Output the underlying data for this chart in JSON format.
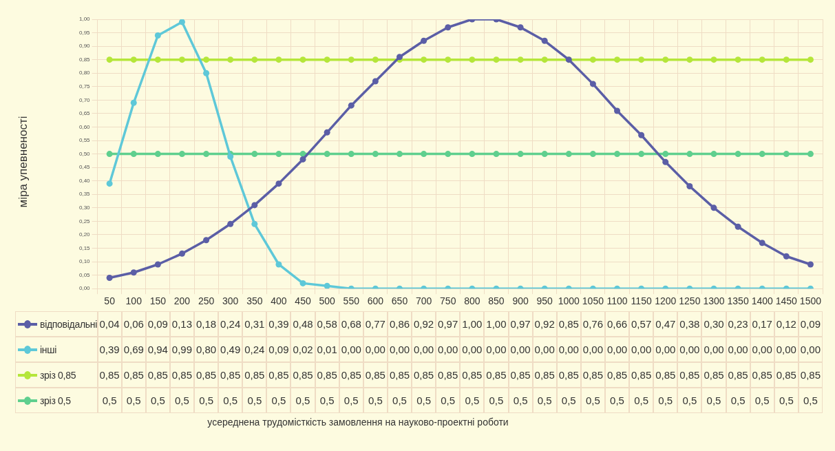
{
  "chart_data": {
    "type": "line",
    "annotations": [
      "усереднена трудомісткість замовлення на науково-проектні роботи"
    ],
    "ylabel": "міра упевненості",
    "categories": [
      "50",
      "100",
      "150",
      "200",
      "250",
      "300",
      "350",
      "400",
      "450",
      "500",
      "550",
      "600",
      "650",
      "700",
      "750",
      "800",
      "850",
      "900",
      "950",
      "1000",
      "1050",
      "1100",
      "1150",
      "1200",
      "1250",
      "1300",
      "1350",
      "1400",
      "1450",
      "1500"
    ],
    "ylim": [
      0,
      1
    ],
    "yticks": [
      {
        "value": 0,
        "label": "0,00"
      },
      {
        "value": 0.05,
        "label": "0,05"
      },
      {
        "value": 0.1,
        "label": "0,10"
      },
      {
        "value": 0.15,
        "label": "0,15"
      },
      {
        "value": 0.2,
        "label": "0,20"
      },
      {
        "value": 0.25,
        "label": "0,25"
      },
      {
        "value": 0.3,
        "label": "0,30"
      },
      {
        "value": 0.35,
        "label": "0,35"
      },
      {
        "value": 0.4,
        "label": "0,40"
      },
      {
        "value": 0.45,
        "label": "0,45"
      },
      {
        "value": 0.5,
        "label": "0,50"
      },
      {
        "value": 0.55,
        "label": "0,55"
      },
      {
        "value": 0.6,
        "label": "0,60"
      },
      {
        "value": 0.65,
        "label": "0,65"
      },
      {
        "value": 0.7,
        "label": "0,70"
      },
      {
        "value": 0.75,
        "label": "0,75"
      },
      {
        "value": 0.8,
        "label": "0,80"
      },
      {
        "value": 0.85,
        "label": "0,85"
      },
      {
        "value": 0.9,
        "label": "0,90"
      },
      {
        "value": 0.95,
        "label": "0,95"
      },
      {
        "value": 1,
        "label": "1,00"
      }
    ],
    "grid": true,
    "legend": "bottom",
    "marker": "circle",
    "line_style": "solid",
    "series": [
      {
        "name": "відповідальні",
        "color": "#5b5ea6",
        "values": [
          0.04,
          0.06,
          0.09,
          0.13,
          0.18,
          0.24,
          0.31,
          0.39,
          0.48,
          0.58,
          0.68,
          0.77,
          0.86,
          0.92,
          0.97,
          1.0,
          1.0,
          0.97,
          0.92,
          0.85,
          0.76,
          0.66,
          0.57,
          0.47,
          0.38,
          0.3,
          0.23,
          0.17,
          0.12,
          0.09
        ],
        "value_labels": [
          "0,04",
          "0,06",
          "0,09",
          "0,13",
          "0,18",
          "0,24",
          "0,31",
          "0,39",
          "0,48",
          "0,58",
          "0,68",
          "0,77",
          "0,86",
          "0,92",
          "0,97",
          "1,00",
          "1,00",
          "0,97",
          "0,92",
          "0,85",
          "0,76",
          "0,66",
          "0,57",
          "0,47",
          "0,38",
          "0,30",
          "0,23",
          "0,17",
          "0,12",
          "0,09"
        ]
      },
      {
        "name": "інші",
        "color": "#5ec8d8",
        "values": [
          0.39,
          0.69,
          0.94,
          0.99,
          0.8,
          0.49,
          0.24,
          0.09,
          0.02,
          0.01,
          0,
          0,
          0,
          0,
          0,
          0,
          0,
          0,
          0,
          0,
          0,
          0,
          0,
          0,
          0,
          0,
          0,
          0,
          0,
          0
        ],
        "value_labels": [
          "0,39",
          "0,69",
          "0,94",
          "0,99",
          "0,80",
          "0,49",
          "0,24",
          "0,09",
          "0,02",
          "0,01",
          "0,00",
          "0,00",
          "0,00",
          "0,00",
          "0,00",
          "0,00",
          "0,00",
          "0,00",
          "0,00",
          "0,00",
          "0,00",
          "0,00",
          "0,00",
          "0,00",
          "0,00",
          "0,00",
          "0,00",
          "0,00",
          "0,00",
          "0,00"
        ]
      },
      {
        "name": "зріз 0,85",
        "color": "#b5e63a",
        "values": [
          0.85,
          0.85,
          0.85,
          0.85,
          0.85,
          0.85,
          0.85,
          0.85,
          0.85,
          0.85,
          0.85,
          0.85,
          0.85,
          0.85,
          0.85,
          0.85,
          0.85,
          0.85,
          0.85,
          0.85,
          0.85,
          0.85,
          0.85,
          0.85,
          0.85,
          0.85,
          0.85,
          0.85,
          0.85,
          0.85
        ],
        "value_labels": [
          "0,85",
          "0,85",
          "0,85",
          "0,85",
          "0,85",
          "0,85",
          "0,85",
          "0,85",
          "0,85",
          "0,85",
          "0,85",
          "0,85",
          "0,85",
          "0,85",
          "0,85",
          "0,85",
          "0,85",
          "0,85",
          "0,85",
          "0,85",
          "0,85",
          "0,85",
          "0,85",
          "0,85",
          "0,85",
          "0,85",
          "0,85",
          "0,85",
          "0,85",
          "0,85"
        ]
      },
      {
        "name": "зріз 0,5",
        "color": "#5fcf8e",
        "values": [
          0.5,
          0.5,
          0.5,
          0.5,
          0.5,
          0.5,
          0.5,
          0.5,
          0.5,
          0.5,
          0.5,
          0.5,
          0.5,
          0.5,
          0.5,
          0.5,
          0.5,
          0.5,
          0.5,
          0.5,
          0.5,
          0.5,
          0.5,
          0.5,
          0.5,
          0.5,
          0.5,
          0.5,
          0.5,
          0.5
        ],
        "value_labels": [
          "0,5",
          "0,5",
          "0,5",
          "0,5",
          "0,5",
          "0,5",
          "0,5",
          "0,5",
          "0,5",
          "0,5",
          "0,5",
          "0,5",
          "0,5",
          "0,5",
          "0,5",
          "0,5",
          "0,5",
          "0,5",
          "0,5",
          "0,5",
          "0,5",
          "0,5",
          "0,5",
          "0,5",
          "0,5",
          "0,5",
          "0,5",
          "0,5",
          "0,5",
          "0,5"
        ]
      }
    ]
  }
}
